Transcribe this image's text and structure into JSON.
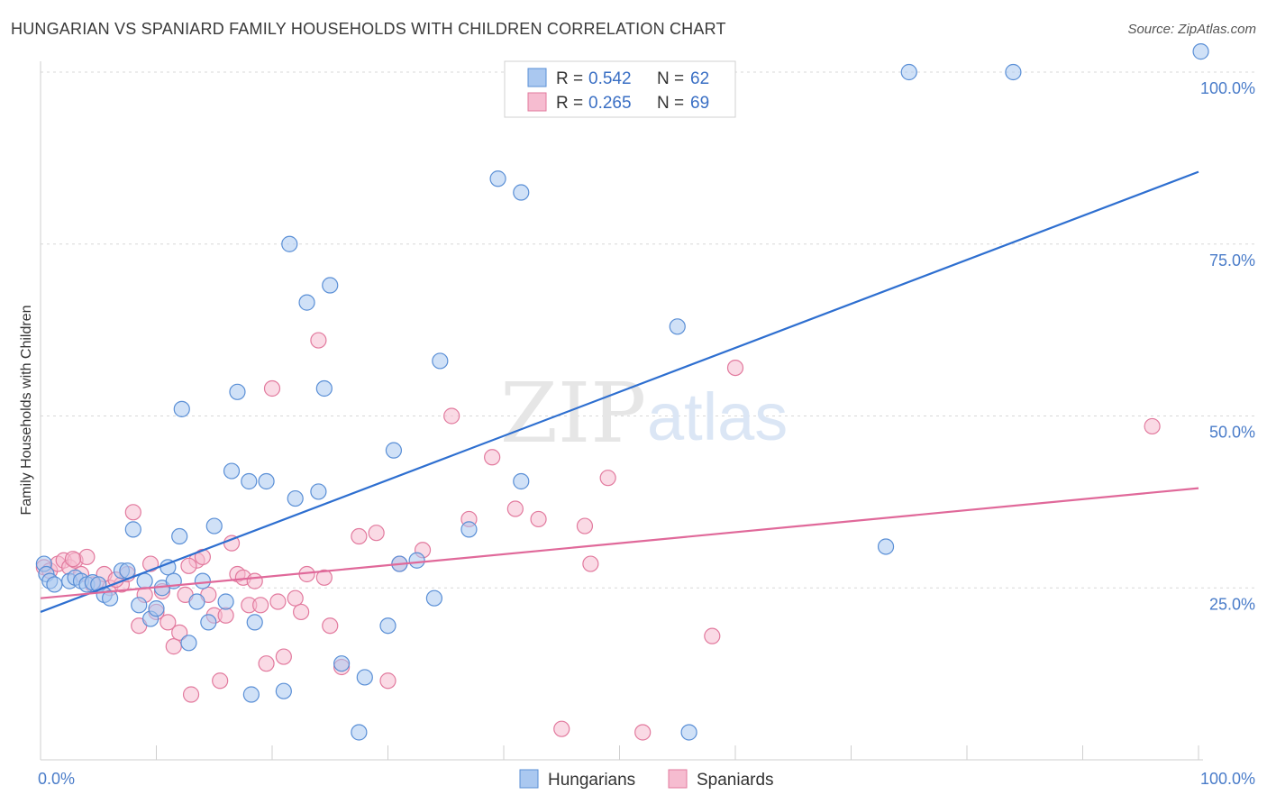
{
  "title": "HUNGARIAN VS SPANIARD FAMILY HOUSEHOLDS WITH CHILDREN CORRELATION CHART",
  "source": "Source: ZipAtlas.com",
  "watermark": {
    "zip": "ZIP",
    "atlas": "atlas"
  },
  "colors": {
    "hungarian_fill": "#aac8f0",
    "hungarian_stroke": "#5a8fd6",
    "hungarian_line": "#2e6fd0",
    "spaniard_fill": "#f6bcd0",
    "spaniard_stroke": "#e27a9e",
    "spaniard_line": "#e0699a",
    "tick": "#4a7cc9",
    "grid": "#d8d8d8"
  },
  "legend": {
    "rows": [
      {
        "r_label": "R =",
        "r_value": "0.542",
        "n_label": "N =",
        "n_value": "62"
      },
      {
        "r_label": "R =",
        "r_value": "0.265",
        "n_label": "N =",
        "n_value": "69"
      }
    ]
  },
  "chart_data": {
    "type": "scatter",
    "ylabel": "Family Households with Children",
    "xlabel": "",
    "xlim": [
      0,
      100
    ],
    "ylim": [
      0,
      100
    ],
    "x_ticks": [
      "0.0%",
      "100.0%"
    ],
    "y_ticks": [
      {
        "value": 100,
        "label": "100.0%"
      },
      {
        "value": 75,
        "label": "75.0%"
      },
      {
        "value": 50,
        "label": "50.0%"
      },
      {
        "value": 25,
        "label": "25.0%"
      }
    ],
    "series": [
      {
        "name": "Hungarians",
        "trend": {
          "x0": 0,
          "y0": 21.5,
          "x1": 100,
          "y1": 85.5
        },
        "points": [
          [
            0.3,
            28.5
          ],
          [
            0.5,
            27
          ],
          [
            0.8,
            26
          ],
          [
            1.2,
            25.5
          ],
          [
            2.5,
            26
          ],
          [
            3,
            26.5
          ],
          [
            3.5,
            26
          ],
          [
            4,
            25.5
          ],
          [
            4.5,
            25.8
          ],
          [
            5,
            25.5
          ],
          [
            5.5,
            24
          ],
          [
            6,
            23.5
          ],
          [
            7,
            27.5
          ],
          [
            7.5,
            27.5
          ],
          [
            8,
            33.5
          ],
          [
            8.5,
            22.5
          ],
          [
            9,
            26
          ],
          [
            9.5,
            20.5
          ],
          [
            10,
            22
          ],
          [
            10.5,
            25
          ],
          [
            11,
            28
          ],
          [
            11.5,
            26
          ],
          [
            12,
            32.5
          ],
          [
            12.2,
            51
          ],
          [
            12.8,
            17
          ],
          [
            13.5,
            23
          ],
          [
            14,
            26
          ],
          [
            14.5,
            20
          ],
          [
            15,
            34
          ],
          [
            16,
            23
          ],
          [
            16.5,
            42
          ],
          [
            17,
            53.5
          ],
          [
            18,
            40.5
          ],
          [
            18.2,
            9.5
          ],
          [
            18.5,
            20
          ],
          [
            19.5,
            40.5
          ],
          [
            21,
            10
          ],
          [
            21.5,
            75
          ],
          [
            22,
            38
          ],
          [
            23,
            66.5
          ],
          [
            24,
            39
          ],
          [
            24.5,
            54
          ],
          [
            25,
            69
          ],
          [
            26,
            14
          ],
          [
            27.5,
            4
          ],
          [
            28,
            12
          ],
          [
            30,
            19.5
          ],
          [
            30.5,
            45
          ],
          [
            31,
            28.5
          ],
          [
            32.5,
            29
          ],
          [
            34,
            23.5
          ],
          [
            34.5,
            58
          ],
          [
            37,
            33.5
          ],
          [
            39.5,
            84.5
          ],
          [
            41.5,
            82.5
          ],
          [
            41.5,
            40.5
          ],
          [
            55,
            63
          ],
          [
            56,
            4
          ],
          [
            73,
            31
          ],
          [
            75,
            100
          ],
          [
            84,
            100
          ],
          [
            100.2,
            103
          ]
        ]
      },
      {
        "name": "Spaniards",
        "trend": {
          "x0": 0,
          "y0": 23.5,
          "x1": 100,
          "y1": 39.5
        },
        "points": [
          [
            0.3,
            28
          ],
          [
            0.8,
            27.5
          ],
          [
            1.5,
            28.5
          ],
          [
            2,
            29
          ],
          [
            2.5,
            28
          ],
          [
            3,
            29
          ],
          [
            3.5,
            27
          ],
          [
            4,
            29.5
          ],
          [
            4.5,
            25.5
          ],
          [
            5,
            25.5
          ],
          [
            5.5,
            27
          ],
          [
            6,
            25
          ],
          [
            7,
            25.5
          ],
          [
            7.5,
            27
          ],
          [
            8,
            36
          ],
          [
            8.5,
            19.5
          ],
          [
            9,
            24
          ],
          [
            9.5,
            28.5
          ],
          [
            10,
            21.5
          ],
          [
            10.5,
            24.5
          ],
          [
            11,
            20
          ],
          [
            11.5,
            16.5
          ],
          [
            12,
            18.5
          ],
          [
            12.5,
            24
          ],
          [
            13,
            9.5
          ],
          [
            13.5,
            29
          ],
          [
            14,
            29.5
          ],
          [
            14.5,
            24
          ],
          [
            15,
            21
          ],
          [
            15.5,
            11.5
          ],
          [
            16,
            21
          ],
          [
            16.5,
            31.5
          ],
          [
            17,
            27
          ],
          [
            17.5,
            26.5
          ],
          [
            18,
            22.5
          ],
          [
            18.5,
            26
          ],
          [
            19,
            22.5
          ],
          [
            19.5,
            14
          ],
          [
            20,
            54
          ],
          [
            20.5,
            23
          ],
          [
            21,
            15
          ],
          [
            22,
            23.5
          ],
          [
            22.5,
            21.5
          ],
          [
            23,
            27
          ],
          [
            24,
            61
          ],
          [
            24.5,
            26.5
          ],
          [
            25,
            19.5
          ],
          [
            26,
            13.5
          ],
          [
            27.5,
            32.5
          ],
          [
            29,
            33
          ],
          [
            30,
            11.5
          ],
          [
            31,
            28.5
          ],
          [
            33,
            30.5
          ],
          [
            35.5,
            50
          ],
          [
            37,
            35
          ],
          [
            39,
            44
          ],
          [
            41,
            36.5
          ],
          [
            43,
            35
          ],
          [
            45,
            4.5
          ],
          [
            47,
            34
          ],
          [
            47.5,
            28.5
          ],
          [
            49,
            41
          ],
          [
            52,
            4
          ],
          [
            58,
            18
          ],
          [
            60,
            57
          ],
          [
            96,
            48.5
          ],
          [
            2.8,
            29.2
          ],
          [
            6.5,
            26.2
          ],
          [
            12.8,
            28.2
          ]
        ]
      }
    ],
    "legend_placement": "top-center",
    "bottom_legend": [
      "Hungarians",
      "Spaniards"
    ],
    "grid": true
  }
}
